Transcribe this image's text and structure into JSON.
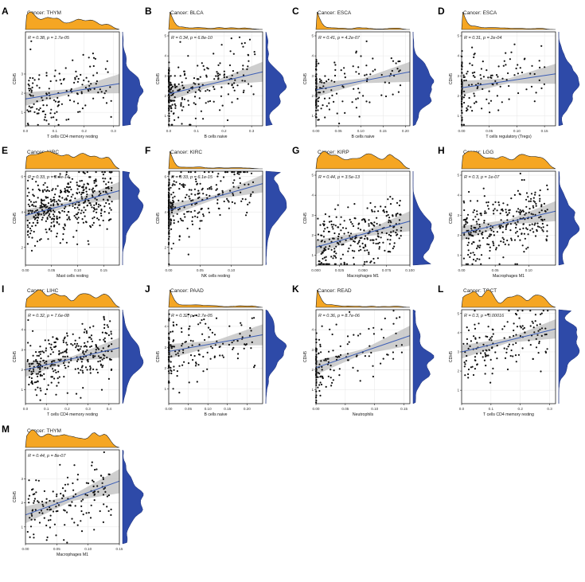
{
  "chart_data": [
    {
      "id": "A",
      "letter": "A",
      "title": "Cancer: THYM",
      "stats": "R = 0.38, p = 1.7e-05",
      "xlabel": "T cells CD4 memory resting",
      "ylabel": "CDH5",
      "xlim": [
        0,
        0.32
      ],
      "ylim": [
        0.3,
        5.2
      ],
      "xticks": [
        "0.0",
        "0.1",
        "0.2",
        "0.3"
      ],
      "xtickvals": [
        0,
        0.1,
        0.2,
        0.3
      ],
      "yticks": [
        "1",
        "2",
        "3"
      ],
      "ytickvals": [
        1,
        2,
        3
      ],
      "fit": [
        [
          0,
          1.7
        ],
        [
          0.32,
          2.5
        ]
      ],
      "seed": 11,
      "n": 150,
      "xmode": "spread",
      "slope": 2.5
    },
    {
      "id": "B",
      "letter": "B",
      "title": "Cancer: BLCA",
      "stats": "R = 0.34, p = 6.8e-10",
      "xlabel": "B cells naive",
      "ylabel": "CDH5",
      "xlim": [
        0,
        0.34
      ],
      "ylim": [
        0.5,
        5.2
      ],
      "xticks": [
        "0.0",
        "0.1",
        "0.2",
        "0.3"
      ],
      "xtickvals": [
        0,
        0.1,
        0.2,
        0.3
      ],
      "yticks": [
        "1",
        "2",
        "3",
        "4",
        "5"
      ],
      "ytickvals": [
        1,
        2,
        3,
        4,
        5
      ],
      "fit": [
        [
          0,
          2.1
        ],
        [
          0.34,
          3.2
        ]
      ],
      "seed": 23,
      "n": 260,
      "xmode": "zero",
      "slope": 3.2
    },
    {
      "id": "C",
      "letter": "C",
      "title": "Cancer: ESCA",
      "stats": "R = 0.41, p = 4.2e-07",
      "xlabel": "B cells naive",
      "ylabel": "CDH5",
      "xlim": [
        0,
        0.21
      ],
      "ylim": [
        0.5,
        5.2
      ],
      "xticks": [
        "0.00",
        "0.05",
        "0.10",
        "0.15",
        "0.20"
      ],
      "xtickvals": [
        0,
        0.05,
        0.1,
        0.15,
        0.2
      ],
      "yticks": [
        "1",
        "2",
        "3",
        "4",
        "5"
      ],
      "ytickvals": [
        1,
        2,
        3,
        4,
        5
      ],
      "fit": [
        [
          0,
          2.3
        ],
        [
          0.21,
          3.2
        ]
      ],
      "seed": 37,
      "n": 160,
      "xmode": "zero",
      "slope": 4.5
    },
    {
      "id": "D",
      "letter": "D",
      "title": "Cancer: ESCA",
      "stats": "R = 0.31, p = 2e-04",
      "xlabel": "T cells regulatory (Tregs)",
      "ylabel": "CDH5",
      "xlim": [
        0,
        0.17
      ],
      "ylim": [
        0.5,
        5.2
      ],
      "xticks": [
        "0.00",
        "0.05",
        "0.10",
        "0.15"
      ],
      "xtickvals": [
        0,
        0.05,
        0.1,
        0.15
      ],
      "yticks": [
        "1",
        "2",
        "3",
        "4",
        "5"
      ],
      "ytickvals": [
        1,
        2,
        3,
        4,
        5
      ],
      "fit": [
        [
          0,
          2.4
        ],
        [
          0.17,
          3.1
        ]
      ],
      "seed": 41,
      "n": 160,
      "xmode": "zero",
      "slope": 4.5
    },
    {
      "id": "E",
      "letter": "E",
      "title": "Cancer: KIRC",
      "stats": "R = 0.33, p = 2.4e-14",
      "xlabel": "Mast cells resting",
      "ylabel": "CDH5",
      "xlim": [
        0,
        0.18
      ],
      "ylim": [
        1,
        6.3
      ],
      "xticks": [
        "0.00",
        "0.05",
        "0.10",
        "0.15"
      ],
      "xtickvals": [
        0,
        0.05,
        0.1,
        0.15
      ],
      "yticks": [
        "2",
        "4",
        "6"
      ],
      "ytickvals": [
        2,
        4,
        6
      ],
      "fit": [
        [
          0,
          3.8
        ],
        [
          0.18,
          5.2
        ]
      ],
      "seed": 53,
      "n": 420,
      "xmode": "spread",
      "slope": 8
    },
    {
      "id": "F",
      "letter": "F",
      "title": "Cancer: KIRC",
      "stats": "R = 0.33, p = 6.1e-15",
      "xlabel": "NK cells resting",
      "ylabel": "CDH5",
      "xlim": [
        0,
        0.15
      ],
      "ylim": [
        1,
        6.3
      ],
      "xticks": [
        "0.00",
        "0.05",
        "0.10"
      ],
      "xtickvals": [
        0,
        0.05,
        0.1
      ],
      "yticks": [
        "2",
        "4",
        "6"
      ],
      "ytickvals": [
        2,
        4,
        6
      ],
      "fit": [
        [
          0,
          4.1
        ],
        [
          0.15,
          5.6
        ]
      ],
      "seed": 67,
      "n": 330,
      "xmode": "zero",
      "slope": 10
    },
    {
      "id": "G",
      "letter": "G",
      "title": "Cancer: KIRP",
      "stats": "R = 0.44, p = 3.5e-13",
      "xlabel": "Macrophages M1",
      "ylabel": "CDH5",
      "xlim": [
        0,
        0.1
      ],
      "ylim": [
        0.5,
        5.2
      ],
      "xticks": [
        "0.000",
        "0.025",
        "0.050",
        "0.075",
        "0.100"
      ],
      "xtickvals": [
        0,
        0.025,
        0.05,
        0.075,
        0.1
      ],
      "yticks": [
        "1",
        "2",
        "3",
        "4",
        "5"
      ],
      "ytickvals": [
        1,
        2,
        3,
        4,
        5
      ],
      "fit": [
        [
          0,
          1.4
        ],
        [
          0.1,
          2.7
        ]
      ],
      "seed": 71,
      "n": 280,
      "xmode": "spread",
      "slope": 13
    },
    {
      "id": "H",
      "letter": "H",
      "title": "Cancer: LGG",
      "stats": "R = 0.3, p = 1e-07",
      "xlabel": "Macrophages M1",
      "ylabel": "CDH5",
      "xlim": [
        0,
        0.14
      ],
      "ylim": [
        0.5,
        5.2
      ],
      "xticks": [
        "0.00",
        "0.05",
        "0.10"
      ],
      "xtickvals": [
        0,
        0.05,
        0.1
      ],
      "yticks": [
        "1",
        "2",
        "3",
        "4",
        "5"
      ],
      "ytickvals": [
        1,
        2,
        3,
        4,
        5
      ],
      "fit": [
        [
          0,
          2.1
        ],
        [
          0.14,
          3.2
        ]
      ],
      "seed": 83,
      "n": 300,
      "xmode": "spread",
      "slope": 8
    },
    {
      "id": "I",
      "letter": "I",
      "title": "Cancer: LIHC",
      "stats": "R = 0.32, p = 7.6e-08",
      "xlabel": "T cells CD4 memory resting",
      "ylabel": "CDH5",
      "xlim": [
        0,
        0.45
      ],
      "ylim": [
        0.3,
        5
      ],
      "xticks": [
        "0.0",
        "0.1",
        "0.2",
        "0.3",
        "0.4"
      ],
      "xtickvals": [
        0,
        0.1,
        0.2,
        0.3,
        0.4
      ],
      "yticks": [
        "1",
        "2",
        "3",
        "4"
      ],
      "ytickvals": [
        1,
        2,
        3,
        4
      ],
      "fit": [
        [
          0,
          2.0
        ],
        [
          0.45,
          3.1
        ]
      ],
      "seed": 97,
      "n": 300,
      "xmode": "spread",
      "slope": 2.4
    },
    {
      "id": "J",
      "letter": "J",
      "title": "Cancer: PAAD",
      "stats": "R = 0.32, p = 2.7e-05",
      "xlabel": "B cells naive",
      "ylabel": "CDH5",
      "xlim": [
        0,
        0.24
      ],
      "ylim": [
        0.3,
        4.8
      ],
      "xticks": [
        "0.00",
        "0.05",
        "0.10",
        "0.15",
        "0.20"
      ],
      "xtickvals": [
        0,
        0.05,
        0.1,
        0.15,
        0.2
      ],
      "yticks": [
        "1",
        "2",
        "3",
        "4"
      ],
      "ytickvals": [
        1,
        2,
        3,
        4
      ],
      "fit": [
        [
          0,
          2.8
        ],
        [
          0.24,
          3.6
        ]
      ],
      "seed": 101,
      "n": 175,
      "xmode": "zero",
      "slope": 3.3
    },
    {
      "id": "K",
      "letter": "K",
      "title": "Cancer: READ",
      "stats": "R = 0.36, p = 8.7e-06",
      "xlabel": "Neutrophils",
      "ylabel": "CDH5",
      "xlim": [
        0,
        0.16
      ],
      "ylim": [
        0.3,
        5
      ],
      "xticks": [
        "0.00",
        "0.05",
        "0.10",
        "0.15"
      ],
      "xtickvals": [
        0,
        0.05,
        0.1,
        0.15
      ],
      "yticks": [
        "1",
        "2",
        "3",
        "4"
      ],
      "ytickvals": [
        1,
        2,
        3,
        4
      ],
      "fit": [
        [
          0,
          2.1
        ],
        [
          0.16,
          3.7
        ]
      ],
      "seed": 113,
      "n": 150,
      "xmode": "zero",
      "slope": 10
    },
    {
      "id": "L",
      "letter": "L",
      "title": "Cancer: TGCT",
      "stats": "R = 0.3, p = 0.00016",
      "xlabel": "T cells CD4 memory resting",
      "ylabel": "CDH5",
      "xlim": [
        0,
        0.32
      ],
      "ylim": [
        0.3,
        5.2
      ],
      "xticks": [
        "0.0",
        "0.1",
        "0.2",
        "0.3"
      ],
      "xtickvals": [
        0,
        0.1,
        0.2,
        0.3
      ],
      "yticks": [
        "1",
        "2",
        "3",
        "4",
        "5"
      ],
      "ytickvals": [
        1,
        2,
        3,
        4,
        5
      ],
      "fit": [
        [
          0,
          3.0
        ],
        [
          0.32,
          4.2
        ]
      ],
      "seed": 127,
      "n": 155,
      "xmode": "spread",
      "slope": 3.5
    },
    {
      "id": "M",
      "letter": "M",
      "title": "Cancer: THYM",
      "stats": "R = 0.44, p = 8e-07",
      "xlabel": "Macrophages M1",
      "ylabel": "CDH5",
      "xlim": [
        0,
        0.15
      ],
      "ylim": [
        0.3,
        4.2
      ],
      "xticks": [
        "0.00",
        "0.05",
        "0.10",
        "0.15"
      ],
      "xtickvals": [
        0,
        0.05,
        0.1,
        0.15
      ],
      "yticks": [
        "1",
        "2",
        "3"
      ],
      "ytickvals": [
        1,
        2,
        3
      ],
      "fit": [
        [
          0,
          1.5
        ],
        [
          0.15,
          2.9
        ]
      ],
      "seed": 131,
      "n": 150,
      "xmode": "spread",
      "slope": 9
    }
  ],
  "colors": {
    "density_x": "#f5a623",
    "density_x_stroke": "#222222",
    "density_y": "#2e4aa8",
    "points": "#111111",
    "fit_line": "#3b5db5",
    "ci_band": "#bdbdbd",
    "grid": "#e6e6e6"
  }
}
